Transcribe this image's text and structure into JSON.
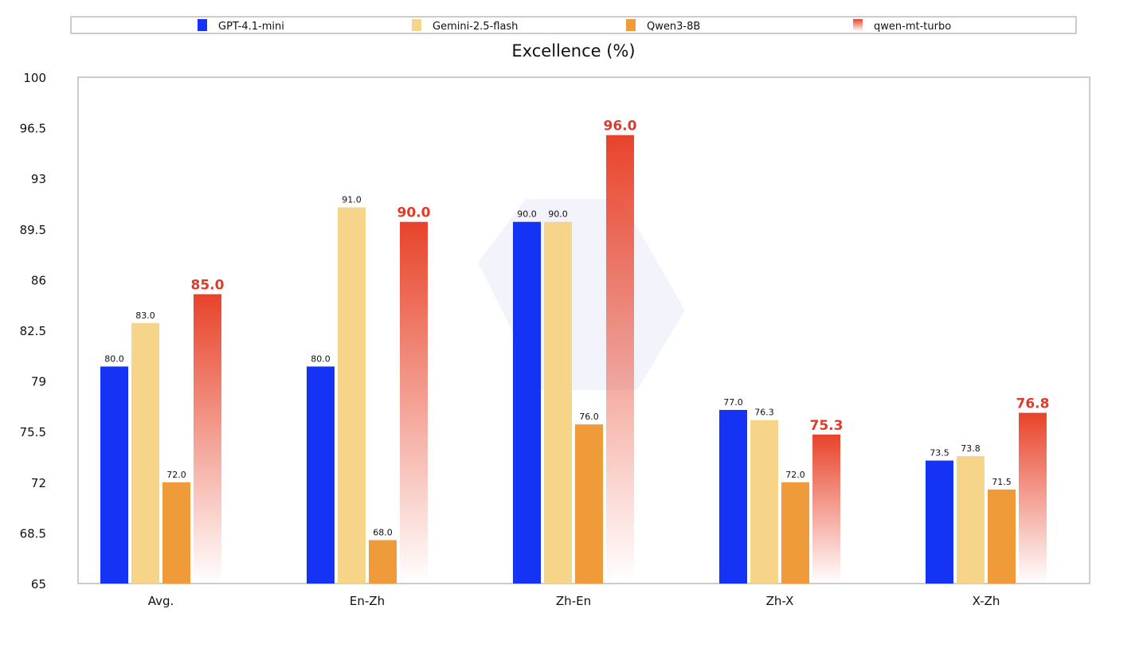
{
  "chart_data": {
    "type": "bar",
    "title": "Excellence (%)",
    "xlabel": "",
    "ylabel": "",
    "ylim": [
      65,
      100
    ],
    "yticks": [
      "65",
      "68.5",
      "72",
      "75.5",
      "79",
      "82.5",
      "86",
      "89.5",
      "93",
      "96.5",
      "100"
    ],
    "categories": [
      "Avg.",
      "En-Zh",
      "Zh-En",
      "Zh-X",
      "X-Zh"
    ],
    "legend_position": "top",
    "grid": false,
    "series": [
      {
        "name": "GPT-4.1-mini",
        "color": "#1433F5",
        "values": [
          80.0,
          80.0,
          90.0,
          77.0,
          73.5
        ],
        "labels": [
          "80.0",
          "80.0",
          "90.0",
          "77.0",
          "73.5"
        ]
      },
      {
        "name": "Gemini-2.5-flash",
        "color": "#F6D58A",
        "values": [
          83.0,
          91.0,
          90.0,
          76.3,
          73.8
        ],
        "labels": [
          "83.0",
          "91.0",
          "90.0",
          "76.3",
          "73.8"
        ]
      },
      {
        "name": "Qwen3-8B",
        "color": "#EF9B3A",
        "values": [
          72.0,
          68.0,
          76.0,
          72.0,
          71.5
        ],
        "labels": [
          "72.0",
          "68.0",
          "76.0",
          "72.0",
          "71.5"
        ]
      },
      {
        "name": "qwen-mt-turbo",
        "color": "#E8432A",
        "gradient": true,
        "values": [
          85.0,
          90.0,
          96.0,
          75.3,
          76.8
        ],
        "labels": [
          "85.0",
          "90.0",
          "96.0",
          "75.3",
          "76.8"
        ]
      }
    ]
  }
}
